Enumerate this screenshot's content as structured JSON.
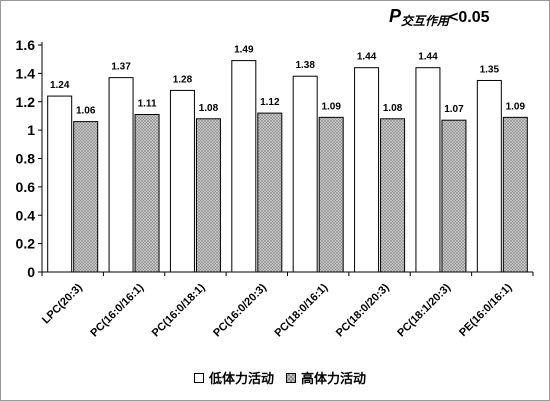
{
  "header": {
    "p_symbol": "P",
    "p_subscript": "交互作用",
    "p_threshold": "<0.05"
  },
  "chart_data": {
    "type": "bar",
    "categories": [
      "LPC(20:3)",
      "PC(16:0/16:1)",
      "PC(16:0/18:1)",
      "PC(16:0/20:3)",
      "PC(18:0/16:1)",
      "PC(18:0/20:3)",
      "PC(18:1/20:3)",
      "PE(16:0/16:1)"
    ],
    "series": [
      {
        "name": "低体力活动",
        "values": [
          1.24,
          1.37,
          1.28,
          1.49,
          1.38,
          1.44,
          1.44,
          1.35
        ],
        "labels": [
          "1.24",
          "1.37",
          "1.28",
          "1.49",
          "1.38",
          "1.44",
          "1.44",
          "1.35"
        ],
        "fill": "#ffffff"
      },
      {
        "name": "高体力活动",
        "values": [
          1.06,
          1.11,
          1.08,
          1.12,
          1.09,
          1.08,
          1.07,
          1.09
        ],
        "labels": [
          "1.06",
          "1.11",
          "1.08",
          "1.12",
          "1.09",
          "1.08",
          "1.07",
          "1.09"
        ],
        "fill": "#c8c8c8"
      }
    ],
    "yticks": [
      "0",
      "0.2",
      "0.4",
      "0.6",
      "0.8",
      "1",
      "1.2",
      "1.4",
      "1.6"
    ],
    "ylim": [
      0,
      1.6
    ],
    "xlabel": "",
    "ylabel": "",
    "grid": false,
    "legend_position": "bottom"
  }
}
